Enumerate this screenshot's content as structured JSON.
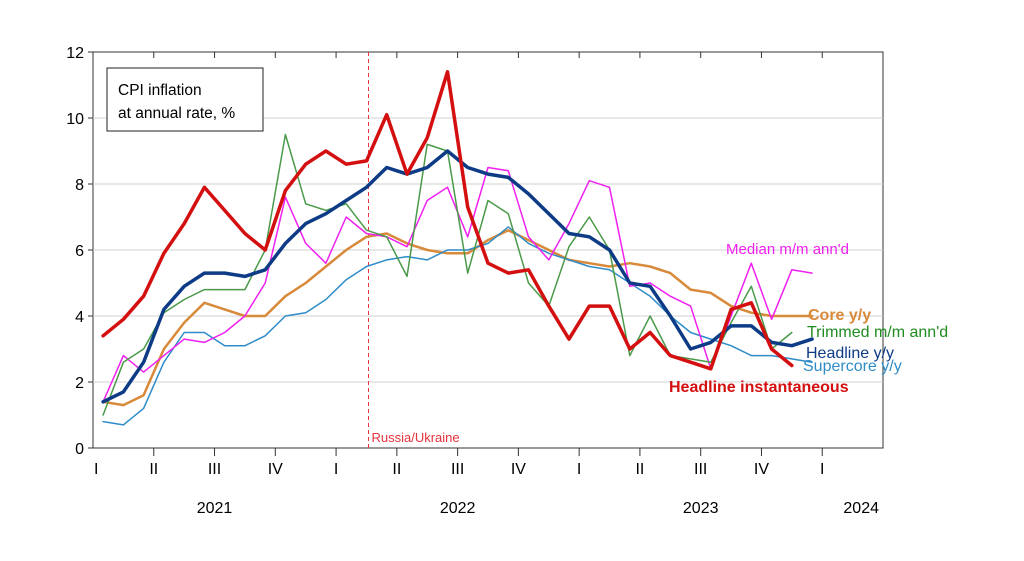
{
  "chart_data": {
    "type": "line",
    "title": "",
    "inset_label": [
      "CPI inflation",
      "at annual rate, %"
    ],
    "xlabel": "",
    "ylabel": "",
    "ylim": [
      0,
      12
    ],
    "yticks": [
      0,
      2,
      4,
      6,
      8,
      10,
      12
    ],
    "grid": true,
    "legend": "inline labels at right",
    "x_start": "2021-01",
    "x_end": "2024-03",
    "quarter_labels": [
      "I",
      "II",
      "III",
      "IV",
      "I",
      "II",
      "III",
      "IV",
      "I",
      "II",
      "III",
      "IV",
      "I"
    ],
    "year_labels": [
      "2021",
      "2022",
      "2023",
      "2024"
    ],
    "annotations": [
      {
        "text": "Russia/Ukraine",
        "x": "2022-02",
        "color": "#e8323c"
      }
    ],
    "series": [
      {
        "name": "Headline instantaneous",
        "color": "#d40f0f",
        "width": 3.5,
        "label_bold": true,
        "x": [
          "2021-01",
          "2021-02",
          "2021-03",
          "2021-04",
          "2021-05",
          "2021-06",
          "2021-07",
          "2021-08",
          "2021-09",
          "2021-10",
          "2021-11",
          "2021-12",
          "2022-01",
          "2022-02",
          "2022-03",
          "2022-04",
          "2022-05",
          "2022-06",
          "2022-07",
          "2022-08",
          "2022-09",
          "2022-10",
          "2022-11",
          "2022-12",
          "2023-01",
          "2023-02",
          "2023-03",
          "2023-04",
          "2023-05",
          "2023-06",
          "2023-07",
          "2023-08",
          "2023-09",
          "2023-10",
          "2023-11"
        ],
        "values": [
          3.4,
          3.9,
          4.6,
          5.9,
          6.8,
          7.9,
          7.2,
          6.5,
          6.0,
          7.8,
          8.6,
          9.0,
          8.6,
          8.7,
          10.1,
          8.3,
          9.4,
          11.4,
          7.3,
          5.6,
          5.3,
          5.4,
          4.3,
          3.3,
          4.3,
          4.3,
          3.0,
          3.5,
          2.8,
          2.6,
          2.4,
          4.2,
          4.4,
          3.0,
          2.5
        ]
      },
      {
        "name": "Headline y/y",
        "color": "#0d3b85",
        "width": 3.5,
        "label_bold": false,
        "x": [
          "2021-01",
          "2021-02",
          "2021-03",
          "2021-04",
          "2021-05",
          "2021-06",
          "2021-07",
          "2021-08",
          "2021-09",
          "2021-10",
          "2021-11",
          "2021-12",
          "2022-01",
          "2022-02",
          "2022-03",
          "2022-04",
          "2022-05",
          "2022-06",
          "2022-07",
          "2022-08",
          "2022-09",
          "2022-10",
          "2022-11",
          "2022-12",
          "2023-01",
          "2023-02",
          "2023-03",
          "2023-04",
          "2023-05",
          "2023-06",
          "2023-07",
          "2023-08",
          "2023-09",
          "2023-10",
          "2023-11",
          "2023-12"
        ],
        "values": [
          1.4,
          1.7,
          2.6,
          4.2,
          4.9,
          5.3,
          5.3,
          5.2,
          5.4,
          6.2,
          6.8,
          7.1,
          7.5,
          7.9,
          8.5,
          8.3,
          8.5,
          9.0,
          8.5,
          8.3,
          8.2,
          7.7,
          7.1,
          6.5,
          6.4,
          6.0,
          5.0,
          4.9,
          4.0,
          3.0,
          3.2,
          3.7,
          3.7,
          3.2,
          3.1,
          3.3
        ]
      },
      {
        "name": "Core y/y",
        "color": "#d88a3a",
        "width": 2.5,
        "label_bold": true,
        "x": [
          "2021-01",
          "2021-02",
          "2021-03",
          "2021-04",
          "2021-05",
          "2021-06",
          "2021-07",
          "2021-08",
          "2021-09",
          "2021-10",
          "2021-11",
          "2021-12",
          "2022-01",
          "2022-02",
          "2022-03",
          "2022-04",
          "2022-05",
          "2022-06",
          "2022-07",
          "2022-08",
          "2022-09",
          "2022-10",
          "2022-11",
          "2022-12",
          "2023-01",
          "2023-02",
          "2023-03",
          "2023-04",
          "2023-05",
          "2023-06",
          "2023-07",
          "2023-08",
          "2023-09",
          "2023-10",
          "2023-11",
          "2023-12"
        ],
        "values": [
          1.4,
          1.3,
          1.6,
          3.0,
          3.8,
          4.4,
          4.2,
          4.0,
          4.0,
          4.6,
          5.0,
          5.5,
          6.0,
          6.4,
          6.5,
          6.2,
          6.0,
          5.9,
          5.9,
          6.3,
          6.6,
          6.3,
          6.0,
          5.7,
          5.6,
          5.5,
          5.6,
          5.5,
          5.3,
          4.8,
          4.7,
          4.3,
          4.1,
          4.0,
          4.0,
          4.0
        ]
      },
      {
        "name": "Supercore y/y",
        "color": "#2f8cc8",
        "width": 1.5,
        "label_bold": false,
        "x": [
          "2021-01",
          "2021-02",
          "2021-03",
          "2021-04",
          "2021-05",
          "2021-06",
          "2021-07",
          "2021-08",
          "2021-09",
          "2021-10",
          "2021-11",
          "2021-12",
          "2022-01",
          "2022-02",
          "2022-03",
          "2022-04",
          "2022-05",
          "2022-06",
          "2022-07",
          "2022-08",
          "2022-09",
          "2022-10",
          "2022-11",
          "2022-12",
          "2023-01",
          "2023-02",
          "2023-03",
          "2023-04",
          "2023-05",
          "2023-06",
          "2023-07",
          "2023-08",
          "2023-09",
          "2023-10",
          "2023-11",
          "2023-12"
        ],
        "values": [
          0.8,
          0.7,
          1.2,
          2.6,
          3.5,
          3.5,
          3.1,
          3.1,
          3.4,
          4.0,
          4.1,
          4.5,
          5.1,
          5.5,
          5.7,
          5.8,
          5.7,
          6.0,
          6.0,
          6.2,
          6.7,
          6.2,
          5.9,
          5.7,
          5.5,
          5.4,
          5.0,
          4.6,
          4.0,
          3.5,
          3.3,
          3.1,
          2.8,
          2.8,
          2.7,
          2.6
        ]
      },
      {
        "name": "Median m/m ann'd",
        "color": "#f020f0",
        "width": 1.5,
        "label_bold": false,
        "x": [
          "2021-01",
          "2021-02",
          "2021-03",
          "2021-04",
          "2021-05",
          "2021-06",
          "2021-07",
          "2021-08",
          "2021-09",
          "2021-10",
          "2021-11",
          "2021-12",
          "2022-01",
          "2022-02",
          "2022-03",
          "2022-04",
          "2022-05",
          "2022-06",
          "2022-07",
          "2022-08",
          "2022-09",
          "2022-10",
          "2022-11",
          "2022-12",
          "2023-01",
          "2023-02",
          "2023-03",
          "2023-04",
          "2023-05",
          "2023-06",
          "2023-07",
          "2023-08",
          "2023-09",
          "2023-10",
          "2023-11",
          "2023-12"
        ],
        "values": [
          1.4,
          2.8,
          2.3,
          2.8,
          3.3,
          3.2,
          3.5,
          4.0,
          5.0,
          7.6,
          6.2,
          5.6,
          7.0,
          6.5,
          6.4,
          6.1,
          7.5,
          7.9,
          6.4,
          8.5,
          8.4,
          6.4,
          5.7,
          6.8,
          8.1,
          7.9,
          4.9,
          5.0,
          4.6,
          4.3,
          2.4,
          4.0,
          5.6,
          3.9,
          5.4,
          5.3
        ]
      },
      {
        "name": "Trimmed m/m ann'd",
        "color": "#4a9a4a",
        "width": 1.5,
        "label_bold": false,
        "label_color": "#1f8c1f",
        "x": [
          "2021-01",
          "2021-02",
          "2021-03",
          "2021-04",
          "2021-05",
          "2021-06",
          "2021-07",
          "2021-08",
          "2021-09",
          "2021-10",
          "2021-11",
          "2021-12",
          "2022-01",
          "2022-02",
          "2022-03",
          "2022-04",
          "2022-05",
          "2022-06",
          "2022-07",
          "2022-08",
          "2022-09",
          "2022-10",
          "2022-11",
          "2022-12",
          "2023-01",
          "2023-02",
          "2023-03",
          "2023-04",
          "2023-05",
          "2023-06",
          "2023-07",
          "2023-08",
          "2023-09",
          "2023-10",
          "2023-11"
        ],
        "values": [
          1.0,
          2.6,
          3.0,
          4.1,
          4.5,
          4.8,
          4.8,
          4.8,
          6.0,
          9.5,
          7.4,
          7.2,
          7.4,
          6.6,
          6.4,
          5.2,
          9.2,
          9.0,
          5.3,
          7.5,
          7.1,
          5.0,
          4.3,
          6.1,
          7.0,
          6.0,
          2.8,
          4.0,
          2.8,
          2.7,
          2.6,
          3.8,
          4.9,
          3.0,
          3.5
        ]
      }
    ]
  }
}
